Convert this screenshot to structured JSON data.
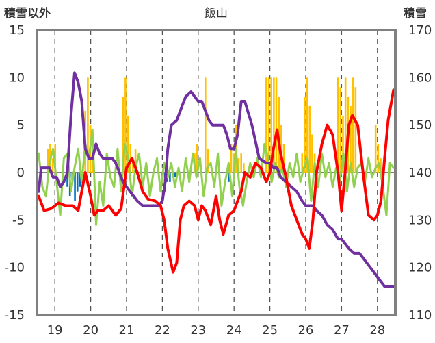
{
  "chart_data": {
    "type": "line",
    "title": "飯山",
    "ylabel_left": "積雪以外",
    "ylabel_right": "積雪",
    "x_ticks": [
      "19",
      "20",
      "21",
      "22",
      "23",
      "24",
      "25",
      "26",
      "27",
      "28"
    ],
    "xlim": [
      18.5,
      28.5
    ],
    "ylim_left": [
      -15,
      15
    ],
    "yticks_left": [
      15,
      10,
      5,
      0,
      -5,
      -10,
      -15
    ],
    "ylim_right": [
      110,
      170
    ],
    "yticks_right": [
      170,
      160,
      150,
      140,
      130,
      120,
      110
    ],
    "grid": {
      "vertical": "dashed",
      "horizontal": "none"
    },
    "colors": {
      "temperature": "#ff0000",
      "snow_depth": "#7030a0",
      "other": "#92d050",
      "bar_positive": "#ffc000",
      "bar_negative": "#0070c0",
      "frame": "#808080"
    },
    "series": [
      {
        "axis": "left",
        "color": "#ff0000",
        "style": "line",
        "x": [
          18.55,
          18.7,
          18.9,
          19.1,
          19.3,
          19.5,
          19.65,
          19.75,
          19.85,
          20.0,
          20.1,
          20.2,
          20.35,
          20.5,
          20.7,
          20.85,
          21.0,
          21.15,
          21.3,
          21.45,
          21.6,
          21.8,
          21.95,
          22.05,
          22.15,
          22.3,
          22.4,
          22.5,
          22.6,
          22.75,
          22.9,
          23.0,
          23.1,
          23.2,
          23.35,
          23.5,
          23.6,
          23.7,
          23.85,
          24.0,
          24.1,
          24.2,
          24.3,
          24.45,
          24.6,
          24.75,
          24.9,
          25.0,
          25.1,
          25.2,
          25.3,
          25.45,
          25.6,
          25.75,
          25.9,
          26.0,
          26.1,
          26.2,
          26.3,
          26.45,
          26.6,
          26.75,
          26.9,
          27.0,
          27.1,
          27.2,
          27.3,
          27.45,
          27.6,
          27.75,
          27.9,
          28.0,
          28.1,
          28.2,
          28.3,
          28.45
        ],
        "y": [
          -2.5,
          -4.0,
          -3.8,
          -3.2,
          -3.5,
          -3.5,
          -4.0,
          -2.0,
          0.0,
          -2.5,
          -4.5,
          -4.0,
          -4.0,
          -3.5,
          -4.5,
          -3.8,
          0.5,
          1.5,
          0.0,
          -2.0,
          -2.8,
          -3.0,
          -3.5,
          -5.0,
          -8.0,
          -10.5,
          -9.5,
          -5.0,
          -3.5,
          -3.0,
          -3.5,
          -5.0,
          -3.5,
          -4.0,
          -5.5,
          -2.5,
          -5.0,
          -6.5,
          -4.5,
          -4.0,
          -3.0,
          -2.0,
          0.0,
          -0.5,
          1.0,
          0.5,
          -1.0,
          0.0,
          2.5,
          4.5,
          2.0,
          -0.5,
          -3.5,
          -5.0,
          -6.5,
          -7.0,
          -8.0,
          -5.0,
          0.0,
          3.0,
          5.0,
          4.0,
          0.0,
          -4.0,
          0.0,
          5.0,
          6.0,
          5.0,
          0.0,
          -4.5,
          -5.0,
          -4.5,
          -3.0,
          1.5,
          5.5,
          8.7
        ]
      },
      {
        "axis": "right",
        "color": "#7030a0",
        "style": "line",
        "x": [
          18.55,
          18.62,
          18.75,
          18.85,
          18.95,
          19.05,
          19.15,
          19.25,
          19.35,
          19.45,
          19.55,
          19.65,
          19.75,
          19.85,
          19.95,
          20.05,
          20.15,
          20.25,
          20.35,
          20.5,
          20.6,
          20.7,
          20.8,
          20.9,
          21.0,
          21.1,
          21.2,
          21.3,
          21.45,
          21.6,
          21.75,
          21.9,
          22.0,
          22.08,
          22.15,
          22.25,
          22.4,
          22.55,
          22.65,
          22.8,
          22.9,
          23.0,
          23.1,
          23.2,
          23.3,
          23.4,
          23.5,
          23.7,
          23.8,
          23.9,
          24.0,
          24.1,
          24.2,
          24.3,
          24.5,
          24.7,
          24.9,
          25.0,
          25.1,
          25.2,
          25.3,
          25.45,
          25.6,
          25.75,
          25.9,
          26.0,
          26.1,
          26.2,
          26.3,
          26.45,
          26.6,
          26.75,
          26.9,
          27.0,
          27.1,
          27.2,
          27.35,
          27.5,
          27.7,
          27.9,
          28.0,
          28.1,
          28.2,
          28.3,
          28.45
        ],
        "y": [
          136,
          141,
          141,
          141,
          139,
          139,
          137,
          138,
          140,
          152,
          161,
          159,
          155,
          145,
          143,
          143,
          146,
          144,
          143,
          143,
          143,
          142,
          140,
          138,
          137,
          136,
          135,
          134,
          133,
          133,
          133,
          133,
          134,
          138,
          145,
          150,
          151,
          154,
          156,
          157,
          156,
          155,
          155,
          153,
          151,
          150,
          150,
          150,
          148,
          145,
          145,
          148,
          155,
          155,
          150,
          143,
          142,
          142,
          141,
          141,
          139,
          138,
          137,
          136,
          134,
          133,
          133,
          133,
          132,
          131,
          129,
          128,
          126,
          126,
          125,
          124,
          123,
          123,
          121,
          119,
          118,
          117,
          116,
          116,
          116
        ]
      },
      {
        "axis": "left",
        "color": "#92d050",
        "style": "line",
        "x": [
          18.55,
          18.65,
          18.75,
          18.85,
          18.95,
          19.05,
          19.15,
          19.25,
          19.35,
          19.45,
          19.55,
          19.65,
          19.75,
          19.85,
          19.95,
          20.05,
          20.15,
          20.25,
          20.35,
          20.45,
          20.55,
          20.65,
          20.75,
          20.85,
          20.95,
          21.05,
          21.15,
          21.25,
          21.35,
          21.45,
          21.55,
          21.65,
          21.75,
          21.85,
          21.95,
          22.05,
          22.15,
          22.25,
          22.35,
          22.45,
          22.55,
          22.65,
          22.75,
          22.85,
          22.95,
          23.05,
          23.15,
          23.25,
          23.35,
          23.45,
          23.55,
          23.65,
          23.75,
          23.85,
          23.95,
          24.05,
          24.15,
          24.25,
          24.35,
          24.45,
          24.55,
          24.65,
          24.75,
          24.85,
          24.95,
          25.05,
          25.15,
          25.25,
          25.35,
          25.45,
          25.55,
          25.65,
          25.75,
          25.85,
          25.95,
          26.05,
          26.15,
          26.25,
          26.35,
          26.45,
          26.55,
          26.65,
          26.75,
          26.85,
          26.95,
          27.05,
          27.15,
          27.25,
          27.35,
          27.45,
          27.55,
          27.65,
          27.75,
          27.85,
          27.95,
          28.05,
          28.15,
          28.25,
          28.35,
          28.45
        ],
        "y": [
          2.0,
          -1.5,
          -2.5,
          1.0,
          2.5,
          -1.0,
          -4.5,
          1.5,
          2.0,
          -2.0,
          0.5,
          2.5,
          -1.0,
          3.0,
          1.5,
          4.5,
          -5.5,
          -1.0,
          -3.5,
          2.0,
          -0.5,
          -1.5,
          2.5,
          -2.0,
          3.0,
          1.5,
          -2.5,
          0.5,
          2.0,
          -1.5,
          1.0,
          -2.5,
          0.0,
          1.5,
          -2.0,
          1.0,
          -0.5,
          1.0,
          -1.5,
          0.5,
          -2.0,
          1.5,
          -1.0,
          2.0,
          -0.5,
          1.5,
          -2.5,
          0.5,
          1.0,
          -1.5,
          2.0,
          -3.5,
          -1.0,
          1.0,
          -2.5,
          2.5,
          -1.5,
          -3.5,
          -1.0,
          1.0,
          -0.5,
          1.5,
          -0.5,
          3.0,
          1.5,
          -1.0,
          1.0,
          -0.5,
          0.5,
          -1.5,
          1.0,
          -0.5,
          2.0,
          -1.0,
          0.5,
          1.5,
          -3.0,
          1.0,
          -1.5,
          2.0,
          -0.5,
          1.0,
          -1.5,
          0.5,
          -1.0,
          2.0,
          -2.0,
          1.0,
          -1.5,
          0.5,
          1.0,
          -1.0,
          1.5,
          -0.5,
          0.5,
          1.0,
          -1.5,
          -4.5,
          1.0,
          0.5
        ]
      }
    ],
    "bars": {
      "axis": "left",
      "width": 0.05,
      "x": [
        18.8,
        18.87,
        18.94,
        19.01,
        19.35,
        19.42,
        19.49,
        19.56,
        19.63,
        19.7,
        19.85,
        19.92,
        19.99,
        20.06,
        20.55,
        20.9,
        20.97,
        21.04,
        21.11,
        21.18,
        21.25,
        22.0,
        22.07,
        22.14,
        22.21,
        22.28,
        22.35,
        22.9,
        22.97,
        23.2,
        23.27,
        23.85,
        23.92,
        23.99,
        24.06,
        24.13,
        24.2,
        24.27,
        24.9,
        24.97,
        25.04,
        25.11,
        25.18,
        25.25,
        25.32,
        25.39,
        25.9,
        25.97,
        26.04,
        26.11,
        26.18,
        26.25,
        26.32,
        26.9,
        26.97,
        27.04,
        27.11,
        27.18,
        27.25,
        27.32,
        27.39,
        27.95,
        28.02,
        28.09
      ],
      "y": [
        2.5,
        3.0,
        1.5,
        3.0,
        -1.5,
        -2.5,
        -1.0,
        -3.0,
        -2.0,
        -1.5,
        6.5,
        10.0,
        5.0,
        3.0,
        -0.5,
        8.0,
        10.0,
        6.0,
        3.0,
        1.5,
        2.5,
        -1.0,
        -2.0,
        -1.0,
        -1.0,
        0.5,
        -0.5,
        2.0,
        3.0,
        10.0,
        2.5,
        -1.0,
        3.0,
        2.0,
        5.0,
        1.5,
        2.0,
        1.0,
        10.0,
        10.0,
        10.0,
        10.0,
        10.0,
        8.0,
        5.0,
        3.0,
        2.0,
        8.0,
        10.0,
        7.0,
        4.0,
        2.0,
        1.0,
        10.0,
        9.0,
        6.0,
        10.0,
        8.0,
        7.0,
        10.0,
        9.0,
        5.0,
        3.0,
        1.5
      ]
    }
  }
}
